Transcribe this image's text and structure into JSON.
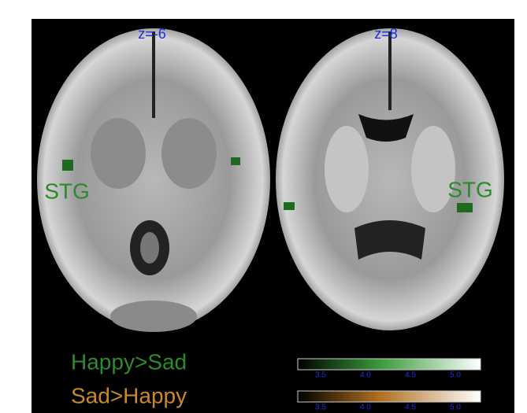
{
  "panels": [
    {
      "slice_label": "z=-6",
      "region_label": "STG"
    },
    {
      "slice_label": "z=8",
      "region_label": "STG"
    }
  ],
  "legend": {
    "items": [
      {
        "label": "Happy>Sad",
        "scale_ticks": [
          "3.5",
          "4.0",
          "4.5",
          "5.0"
        ]
      },
      {
        "label": "Sad>Happy",
        "scale_ticks": [
          "3.5",
          "4.0",
          "4.5",
          "5.0"
        ]
      }
    ]
  }
}
